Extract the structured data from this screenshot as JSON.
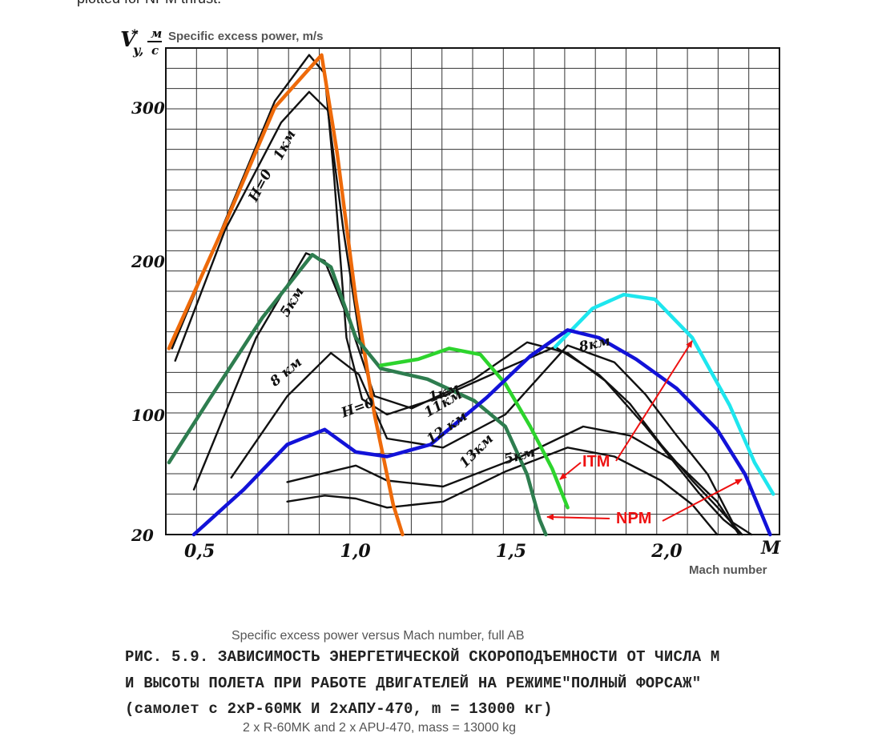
{
  "top_text": "plotted for NPM thrust.",
  "chart_data": {
    "type": "line",
    "title": "Specific excess power versus Mach number, full AB",
    "ylabel_ru": "V*y, м/с",
    "ylabel_en": "Specific excess power, m/s",
    "xlabel_ru": "M",
    "xlabel_en": "Mach number",
    "xlim": [
      0.41,
      2.38
    ],
    "x_ticks": [
      {
        "v": 0.5,
        "label": "0,5"
      },
      {
        "v": 1.0,
        "label": "1,0"
      },
      {
        "v": 1.5,
        "label": "1,5"
      },
      {
        "v": 2.0,
        "label": "2,0"
      }
    ],
    "y_ticks": [
      {
        "v": 20,
        "label": "20"
      },
      {
        "v": 100,
        "label": "100"
      },
      {
        "v": 200,
        "label": "200"
      },
      {
        "v": 300,
        "label": "300"
      }
    ],
    "y_scale_note": "non-uniform: 20 at bottom, then linear 100-340",
    "series": [
      {
        "name": "H=0",
        "color": "#111111",
        "points": [
          [
            0.43,
            143
          ],
          [
            0.6,
            226
          ],
          [
            0.76,
            304
          ],
          [
            0.87,
            334
          ],
          [
            0.92,
            322
          ],
          [
            0.95,
            255
          ],
          [
            0.99,
            150
          ],
          [
            1.04,
            110
          ],
          [
            1.12,
            100
          ],
          [
            1.3,
            112
          ],
          [
            1.5,
            130
          ],
          [
            1.66,
            144
          ],
          [
            1.8,
            126
          ],
          [
            1.9,
            107
          ],
          [
            2.0,
            80
          ],
          [
            2.1,
            56
          ],
          [
            2.2,
            34
          ],
          [
            2.26,
            20
          ]
        ]
      },
      {
        "name": "1 км",
        "color": "#111111",
        "points": [
          [
            0.44,
            135
          ],
          [
            0.6,
            220
          ],
          [
            0.78,
            290
          ],
          [
            0.87,
            310
          ],
          [
            0.93,
            298
          ],
          [
            0.98,
            220
          ],
          [
            1.04,
            140
          ]
        ]
      },
      {
        "name": "5 км",
        "color": "#111111",
        "points": [
          [
            0.5,
            50
          ],
          [
            0.7,
            150
          ],
          [
            0.86,
            205
          ],
          [
            0.92,
            200
          ],
          [
            1.0,
            160
          ],
          [
            1.08,
            112
          ],
          [
            1.2,
            104
          ],
          [
            1.4,
            123
          ],
          [
            1.57,
            147
          ],
          [
            1.7,
            140
          ],
          [
            1.82,
            122
          ],
          [
            1.95,
            92
          ],
          [
            2.05,
            66
          ],
          [
            2.12,
            48
          ],
          [
            2.2,
            30
          ],
          [
            2.26,
            20
          ]
        ]
      },
      {
        "name": "8 км",
        "color": "#111111",
        "points": [
          [
            0.62,
            58
          ],
          [
            0.8,
            112
          ],
          [
            0.94,
            140
          ],
          [
            1.03,
            126
          ],
          [
            1.12,
            84
          ],
          [
            1.3,
            78
          ],
          [
            1.5,
            100
          ],
          [
            1.7,
            145
          ],
          [
            1.85,
            134
          ],
          [
            1.95,
            113
          ],
          [
            2.05,
            86
          ],
          [
            2.15,
            60
          ],
          [
            2.23,
            28
          ],
          [
            2.29,
            20
          ]
        ]
      },
      {
        "name": "12 км",
        "color": "#111111",
        "points": [
          [
            0.8,
            55
          ],
          [
            0.9,
            60
          ],
          [
            1.02,
            66
          ],
          [
            1.12,
            56
          ],
          [
            1.3,
            52
          ],
          [
            1.55,
            72
          ],
          [
            1.75,
            92
          ],
          [
            1.9,
            86
          ],
          [
            2.05,
            68
          ],
          [
            2.18,
            42
          ],
          [
            2.25,
            20
          ]
        ]
      },
      {
        "name": "13 км",
        "color": "#111111",
        "points": [
          [
            0.8,
            42
          ],
          [
            0.92,
            46
          ],
          [
            1.02,
            44
          ],
          [
            1.12,
            38
          ],
          [
            1.3,
            42
          ],
          [
            1.5,
            62
          ],
          [
            1.7,
            78
          ],
          [
            1.85,
            72
          ],
          [
            2.0,
            56
          ],
          [
            2.1,
            40
          ],
          [
            2.18,
            20
          ]
        ]
      },
      {
        "name": "NPM H=0",
        "color": "#ee6a0a",
        "points": [
          [
            0.42,
            143
          ],
          [
            0.6,
            224
          ],
          [
            0.76,
            300
          ],
          [
            0.91,
            334
          ],
          [
            0.96,
            270
          ],
          [
            1.02,
            175
          ],
          [
            1.08,
            100
          ],
          [
            1.14,
            40
          ],
          [
            1.17,
            20
          ]
        ]
      },
      {
        "name": "NPM 5 км",
        "color": "#2e7d4f",
        "points": [
          [
            0.42,
            68
          ],
          [
            0.55,
            110
          ],
          [
            0.72,
            163
          ],
          [
            0.88,
            204
          ],
          [
            0.94,
            196
          ],
          [
            1.02,
            150
          ],
          [
            1.1,
            130
          ],
          [
            1.25,
            123
          ],
          [
            1.4,
            109
          ],
          [
            1.5,
            92
          ],
          [
            1.57,
            60
          ],
          [
            1.61,
            30
          ],
          [
            1.63,
            20
          ]
        ]
      },
      {
        "name": "ITM 5 км",
        "color": "#2dd42d",
        "points": [
          [
            1.1,
            132
          ],
          [
            1.22,
            136
          ],
          [
            1.32,
            143
          ],
          [
            1.42,
            139
          ],
          [
            1.5,
            120
          ],
          [
            1.58,
            92
          ],
          [
            1.65,
            64
          ],
          [
            1.7,
            38
          ]
        ]
      },
      {
        "name": "ITM 8 км",
        "color": "#1ee6ee",
        "points": [
          [
            1.66,
            144
          ],
          [
            1.78,
            169
          ],
          [
            1.88,
            178
          ],
          [
            1.98,
            175
          ],
          [
            2.1,
            150
          ],
          [
            2.22,
            106
          ],
          [
            2.3,
            68
          ],
          [
            2.36,
            47
          ]
        ]
      },
      {
        "name": "NPM 8 км",
        "color": "#1212d8",
        "points": [
          [
            0.5,
            20
          ],
          [
            0.66,
            50
          ],
          [
            0.8,
            80
          ],
          [
            0.92,
            90
          ],
          [
            1.02,
            75
          ],
          [
            1.12,
            72
          ],
          [
            1.26,
            80
          ],
          [
            1.44,
            111
          ],
          [
            1.58,
            138
          ],
          [
            1.7,
            155
          ],
          [
            1.8,
            150
          ],
          [
            1.92,
            136
          ],
          [
            2.05,
            117
          ],
          [
            2.18,
            90
          ],
          [
            2.27,
            60
          ],
          [
            2.35,
            20
          ]
        ]
      }
    ],
    "curve_labels": [
      "H=0",
      "1км",
      "5км",
      "8 км",
      "8км",
      "H=0",
      "1км",
      "11км",
      "12 км",
      "13км",
      "5км"
    ],
    "annotations": [
      {
        "text": "ITM",
        "color": "#ee1111"
      },
      {
        "text": "NPM",
        "color": "#ee1111"
      }
    ]
  },
  "caption": {
    "ru_line1": "РИС. 5.9. ЗАВИСИМОСТЬ ЭНЕРГЕТИЧЕСКОЙ СКОРОПОДЪЕМНОСТИ ОТ ЧИСЛА М",
    "ru_line2": "И ВЫСОТЫ ПОЛЕТА ПРИ РАБОТЕ ДВИГАТЕЛЕЙ НА РЕЖИМЕ\"ПОЛНЫЙ ФОРСАЖ\"",
    "ru_line3": "(самолет с 2хР-60МК И 2хАПУ-470, m = 13000 кг)",
    "en_title": "Specific excess power versus Mach number, full AB",
    "en_line3": "2 x R-60MK and 2 x APU-470, mass = 13000 kg"
  }
}
